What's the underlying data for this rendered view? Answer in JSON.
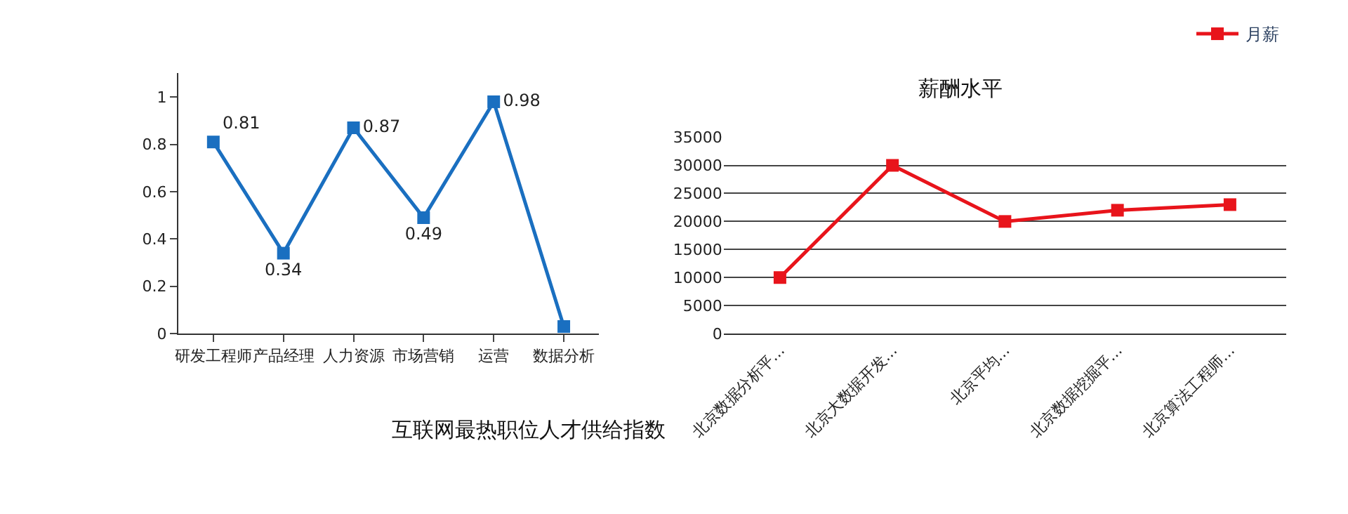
{
  "chart_data": [
    {
      "type": "line",
      "title": "互联网最热职位人才供给指数",
      "categories": [
        "研发工程师",
        "产品经理",
        "人力资源",
        "市场营销",
        "运营",
        "数据分析"
      ],
      "series": [
        {
          "color": "#1a6fc0",
          "values": [
            0.81,
            0.34,
            0.87,
            0.49,
            0.98,
            0.03
          ],
          "value_labels": [
            "0.81",
            "0.34",
            "0.87",
            "0.49",
            "0.98",
            null
          ]
        }
      ],
      "ylim": [
        0,
        1.1
      ],
      "yticks": [
        0,
        0.2,
        0.4,
        0.6,
        0.8,
        1
      ],
      "marker": "square",
      "grid": false,
      "legend": false
    },
    {
      "type": "line",
      "title": "薪酬水平",
      "categories": [
        "北京数据分析平...",
        "北京大数据开发...",
        "北京平均...",
        "北京数据挖掘平...",
        "北京算法工程师..."
      ],
      "series": [
        {
          "name": "月薪",
          "color": "#e8141b",
          "values": [
            10000,
            30000,
            20000,
            22000,
            23000
          ]
        }
      ],
      "ylim": [
        0,
        35000
      ],
      "yticks": [
        0,
        5000,
        10000,
        15000,
        20000,
        25000,
        30000,
        35000
      ],
      "marker": "square",
      "grid": "y",
      "legend": "top right"
    }
  ]
}
